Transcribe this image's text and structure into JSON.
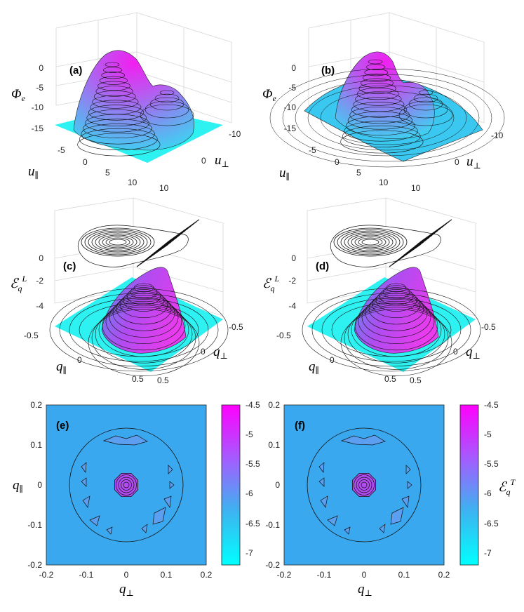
{
  "chart_data": [
    {
      "type": "surface3d",
      "panel_label": "(a)",
      "zlabel": "Φ_e",
      "xlabel": "u_∥",
      "ylabel": "u_⊥",
      "z_ticks": [
        "0",
        "-5",
        "-10",
        "-15"
      ],
      "x_ticks": [
        "-5",
        "0",
        "5",
        "10"
      ],
      "y_ticks": [
        "-10",
        "0",
        "10"
      ],
      "zlim": [
        -16,
        0
      ],
      "base_level": -16,
      "peaks": [
        {
          "x": 0,
          "y": 0,
          "z": 0
        },
        {
          "x": 5,
          "y": -3,
          "z": -4
        }
      ]
    },
    {
      "type": "surface3d",
      "panel_label": "(b)",
      "zlabel": "Φ_e",
      "xlabel": "u_∥",
      "ylabel": "u_⊥",
      "z_ticks": [
        "0",
        "-5",
        "-10",
        "-15"
      ],
      "x_ticks": [
        "-5",
        "0",
        "5",
        "10"
      ],
      "y_ticks": [
        "-10",
        "0",
        "10"
      ],
      "zlim": [
        -16,
        0
      ],
      "base_level": "curved",
      "peaks": [
        {
          "x": 0,
          "y": 0,
          "z": 0
        },
        {
          "x": 5,
          "y": -3,
          "z": -4
        }
      ]
    },
    {
      "type": "surface3d",
      "panel_label": "(c)",
      "zlabel": "ℰ_q^L",
      "xlabel": "q_∥",
      "ylabel": "q_⊥",
      "z_ticks": [
        "0",
        "-2",
        "-4"
      ],
      "x_ticks": [
        "-0.5",
        "0",
        "0.5"
      ],
      "y_ticks": [
        "-0.5",
        "0",
        "0.5"
      ],
      "zlim": [
        -5,
        0
      ],
      "projected_contours": "top"
    },
    {
      "type": "surface3d",
      "panel_label": "(d)",
      "zlabel": "ℰ_q^L",
      "xlabel": "q_∥",
      "ylabel": "q_⊥",
      "z_ticks": [
        "0",
        "-2",
        "-4"
      ],
      "x_ticks": [
        "-0.5",
        "0",
        "0.5"
      ],
      "y_ticks": [
        "-0.5",
        "0",
        "0.5"
      ],
      "zlim": [
        -5,
        0
      ],
      "projected_contours": "top"
    },
    {
      "type": "contour",
      "panel_label": "(e)",
      "xlabel": "q_⊥",
      "ylabel": "q_∥",
      "xlim": [
        -0.2,
        0.2
      ],
      "ylim": [
        -0.2,
        0.2
      ],
      "x_ticks": [
        "-0.2",
        "-0.1",
        "0",
        "0.1",
        "0.2"
      ],
      "y_ticks": [
        "0.2",
        "0.1",
        "0",
        "-0.1",
        "-0.2"
      ],
      "circle_radius": 0.142,
      "colorbar": {
        "ticks": [
          "-4.5",
          "-5",
          "-5.5",
          "-6",
          "-6.5",
          "-7"
        ],
        "min": -7.2,
        "max": -4.5,
        "label": ""
      }
    },
    {
      "type": "contour",
      "panel_label": "(f)",
      "xlabel": "q_⊥",
      "ylabel": "q_∥",
      "xlim": [
        -0.2,
        0.2
      ],
      "ylim": [
        -0.2,
        0.2
      ],
      "x_ticks": [
        "-0.2",
        "-0.1",
        "0",
        "0.1",
        "0.2"
      ],
      "y_ticks": [
        "0.2",
        "0.1",
        "0",
        "-0.1",
        "-0.2"
      ],
      "circle_radius": 0.142,
      "colorbar": {
        "ticks": [
          "-4.5",
          "-5",
          "-5.5",
          "-6",
          "-6.5",
          "-7"
        ],
        "min": -7.2,
        "max": -4.5,
        "label": "ℰ_q^T"
      }
    }
  ],
  "colors": {
    "floor": "#2ef2f2",
    "peak": "#ee2ee8",
    "contour_bg": "#3aa8ee",
    "cb_top": "#ff00ff",
    "cb_bottom": "#00ffff"
  }
}
